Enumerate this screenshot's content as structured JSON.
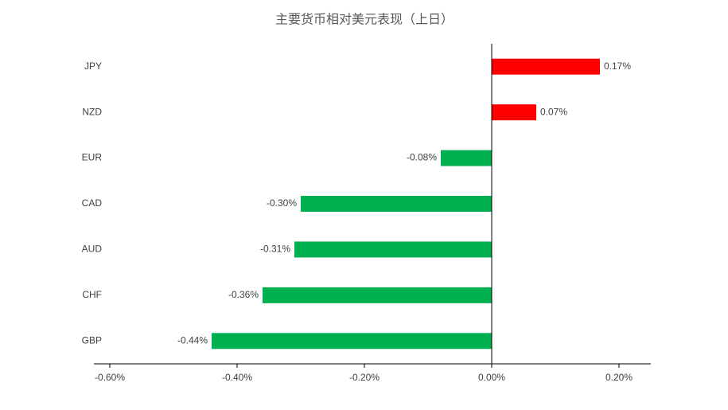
{
  "chart_data": {
    "type": "bar",
    "orientation": "horizontal",
    "title": "主要货币相对美元表现（上日）",
    "categories": [
      "JPY",
      "NZD",
      "EUR",
      "CAD",
      "AUD",
      "CHF",
      "GBP"
    ],
    "values": [
      0.17,
      0.07,
      -0.08,
      -0.3,
      -0.31,
      -0.36,
      -0.44
    ],
    "value_labels": [
      "0.17%",
      "0.07%",
      "-0.08%",
      "-0.30%",
      "-0.31%",
      "-0.36%",
      "-0.44%"
    ],
    "positive_color": "#ff0000",
    "negative_color": "#00b050",
    "xlim": [
      -0.625,
      0.25
    ],
    "xticks": [
      {
        "value": -0.6,
        "label": "-0.60%"
      },
      {
        "value": -0.4,
        "label": "-0.40%"
      },
      {
        "value": -0.2,
        "label": "-0.20%"
      },
      {
        "value": 0,
        "label": "0.00%"
      },
      {
        "value": 0.2,
        "label": "0.20%"
      }
    ],
    "grid": false
  }
}
